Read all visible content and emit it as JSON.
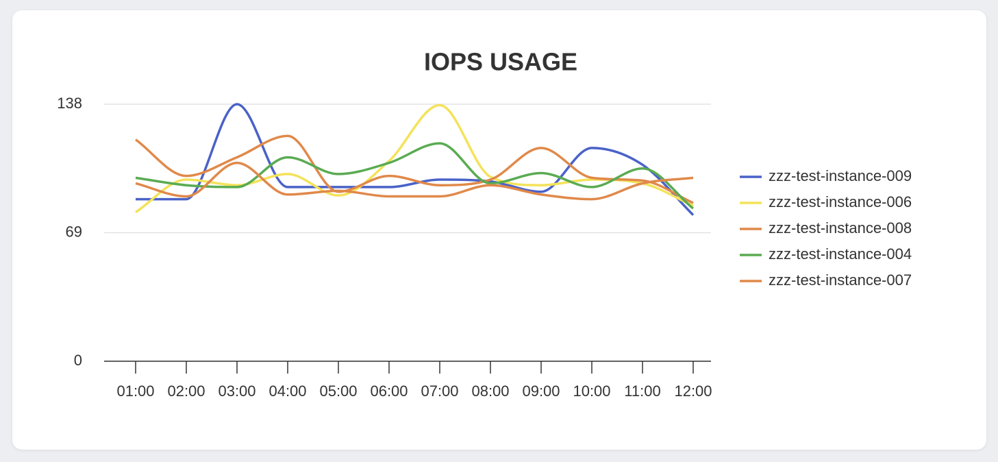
{
  "chart_data": {
    "type": "line",
    "title": "IOPS USAGE",
    "categories": [
      "01:00",
      "02:00",
      "03:00",
      "04:00",
      "05:00",
      "06:00",
      "07:00",
      "08:00",
      "09:00",
      "10:00",
      "11:00",
      "12:00"
    ],
    "series": [
      {
        "name": "zzz-test-instance-009",
        "color": "#4a62c8",
        "values": [
          87,
          87,
          138,
          93.5,
          93.5,
          93.5,
          97.5,
          96.5,
          91,
          114.5,
          105.5,
          78.5
        ]
      },
      {
        "name": "zzz-test-instance-006",
        "color": "#f4e25a",
        "values": [
          80,
          97.5,
          94.5,
          100.5,
          89,
          107.5,
          137.5,
          99,
          94.5,
          97.5,
          95.5,
          83.5
        ]
      },
      {
        "name": "zzz-test-instance-008",
        "color": "#e0894a",
        "values": [
          119,
          99.5,
          109.5,
          121,
          91,
          99.5,
          94.5,
          97.5,
          114.5,
          98.5,
          97,
          85
        ]
      },
      {
        "name": "zzz-test-instance-004",
        "color": "#5aab52",
        "values": [
          98.5,
          94.5,
          93.5,
          109.5,
          100.5,
          106.5,
          117,
          95.5,
          101,
          93.5,
          103.5,
          82
        ]
      },
      {
        "name": "zzz-test-instance-007",
        "color": "#e0894a",
        "values": [
          95.5,
          88.5,
          106.5,
          89.5,
          91.5,
          88.5,
          88.5,
          94.5,
          89.5,
          87,
          95.5,
          98.5
        ]
      }
    ],
    "ylim": [
      0,
      138
    ],
    "yticks": [
      0,
      69,
      138
    ],
    "grid": true,
    "legend": "right"
  }
}
